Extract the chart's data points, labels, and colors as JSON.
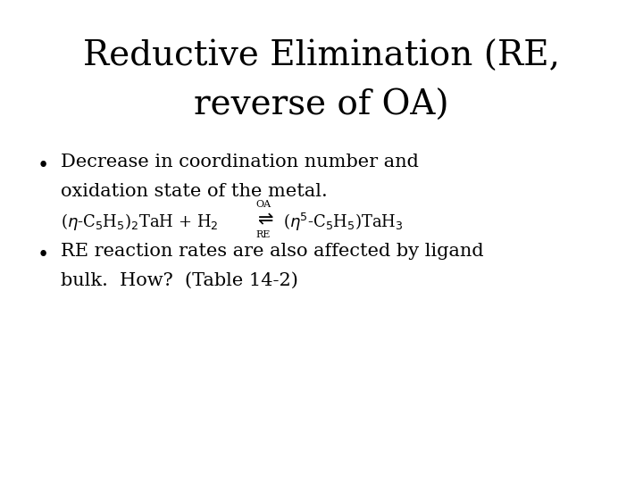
{
  "title_line1": "Reductive Elimination (RE,",
  "title_line2": "reverse of OA)",
  "title_fontsize": 28,
  "title_font": "serif",
  "bg_color": "#ffffff",
  "text_color": "#000000",
  "bullet1_line1": "Decrease in coordination number and",
  "bullet1_line2": "oxidation state of the metal.",
  "eq_label_top": "OA",
  "eq_label_bot": "RE",
  "bullet2_line1": "RE reaction rates are also affected by ligand",
  "bullet2_line2": "bulk.  How?  (Table 14-2)",
  "body_fontsize": 15,
  "body_font": "serif",
  "eq_fontsize": 13,
  "small_fontsize": 8,
  "bullet_fontsize": 16
}
